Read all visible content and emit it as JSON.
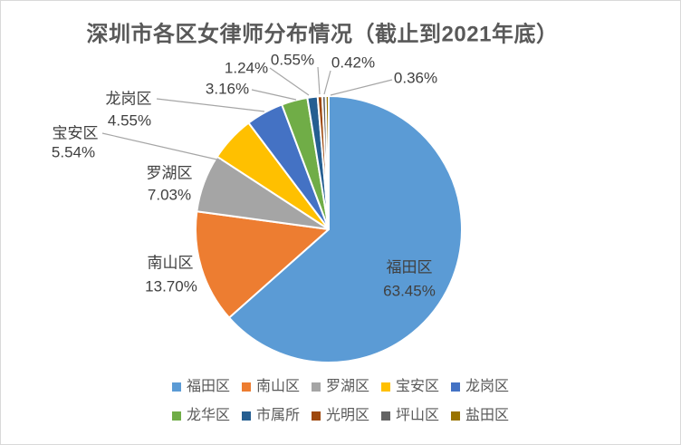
{
  "title": "深圳市各区女律师分布情况（截止到2021年底）",
  "chart_data": {
    "type": "pie",
    "title": "深圳市各区女律师分布情况（截止到2021年底）",
    "start_angle_deg": 0,
    "direction": "clockwise",
    "legend_position": "bottom",
    "legend_rows": 2,
    "slices": [
      {
        "label": "福田区",
        "value": 63.45,
        "pct_label": "63.45%",
        "color": "#5B9BD5",
        "name_on_chart": true
      },
      {
        "label": "南山区",
        "value": 13.7,
        "pct_label": "13.70%",
        "color": "#ED7D31",
        "name_on_chart": true
      },
      {
        "label": "罗湖区",
        "value": 7.03,
        "pct_label": "7.03%",
        "color": "#A5A5A5",
        "name_on_chart": true
      },
      {
        "label": "宝安区",
        "value": 5.54,
        "pct_label": "5.54%",
        "color": "#FFC000",
        "name_on_chart": true
      },
      {
        "label": "龙岗区",
        "value": 4.55,
        "pct_label": "4.55%",
        "color": "#4472C4",
        "name_on_chart": true
      },
      {
        "label": "龙华区",
        "value": 3.16,
        "pct_label": "3.16%",
        "color": "#70AD47",
        "name_on_chart": false
      },
      {
        "label": "市属所",
        "value": 1.24,
        "pct_label": "1.24%",
        "color": "#255E91",
        "name_on_chart": false
      },
      {
        "label": "光明区",
        "value": 0.55,
        "pct_label": "0.55%",
        "color": "#9E480E",
        "name_on_chart": false
      },
      {
        "label": "坪山区",
        "value": 0.42,
        "pct_label": "0.42%",
        "color": "#636363",
        "name_on_chart": false
      },
      {
        "label": "盐田区",
        "value": 0.36,
        "pct_label": "0.36%",
        "color": "#997300",
        "name_on_chart": false
      }
    ],
    "colors": {
      "label_text": "#404040",
      "legend_text": "#595959",
      "title_text": "#595959",
      "leader_line": "#A6A6A6",
      "slice_border": "#FFFFFF"
    }
  }
}
